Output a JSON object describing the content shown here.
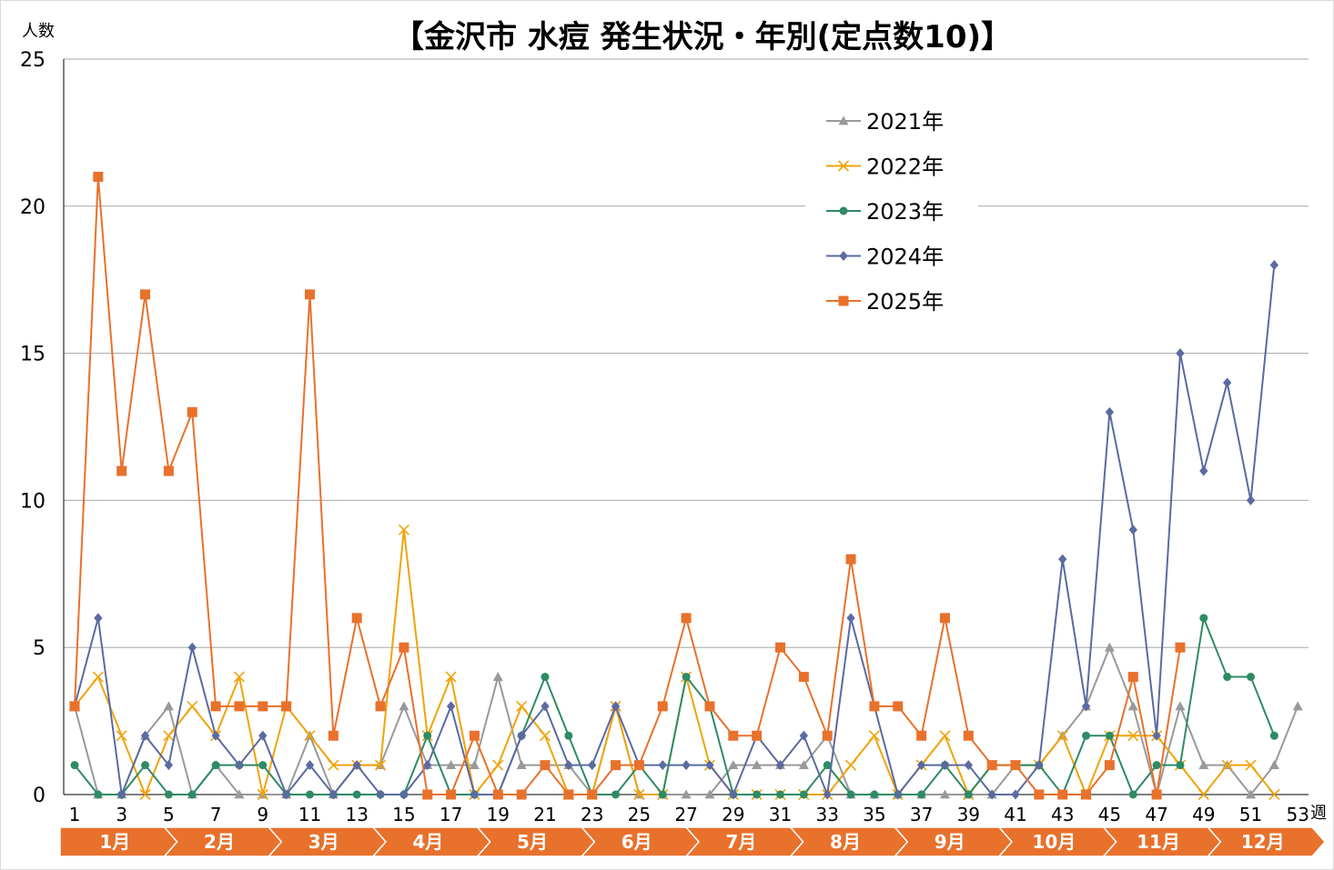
{
  "chart_data": {
    "type": "line",
    "title": "【金沢市 水痘 発生状況・年別(定点数10)】",
    "ylabel": "人数",
    "xlabel": "週",
    "ylim": [
      0,
      25
    ],
    "yticks": [
      "0",
      "5",
      "10",
      "15",
      "20",
      "25"
    ],
    "xlim": [
      1,
      53
    ],
    "xtick_labels": [
      "1",
      "3",
      "5",
      "7",
      "9",
      "11",
      "13",
      "15",
      "17",
      "19",
      "21",
      "23",
      "25",
      "27",
      "29",
      "31",
      "33",
      "35",
      "37",
      "39",
      "41",
      "43",
      "45",
      "47",
      "49",
      "51",
      "53"
    ],
    "months": [
      "1月",
      "2月",
      "3月",
      "4月",
      "5月",
      "6月",
      "7月",
      "8月",
      "9月",
      "10月",
      "11月",
      "12月"
    ],
    "grid": true,
    "legend_position": "upper-right-inside",
    "series": [
      {
        "name": "2021年",
        "color": "#999999",
        "marker": "triangle",
        "values": [
          3,
          0,
          0,
          2,
          3,
          0,
          1,
          0,
          0,
          0,
          2,
          0,
          1,
          1,
          3,
          1,
          1,
          1,
          4,
          1,
          1,
          1,
          0,
          3,
          0,
          0,
          0,
          0,
          1,
          1,
          1,
          1,
          2,
          0,
          0,
          0,
          0,
          0,
          0,
          0,
          1,
          1,
          2,
          3,
          5,
          3,
          0,
          3,
          1,
          1,
          0,
          1,
          3
        ]
      },
      {
        "name": "2022年",
        "color": "#f0a30a",
        "marker": "x",
        "values": [
          3,
          4,
          2,
          0,
          2,
          3,
          2,
          4,
          0,
          3,
          2,
          1,
          1,
          1,
          9,
          2,
          4,
          0,
          1,
          3,
          2,
          0,
          0,
          3,
          0,
          0,
          4,
          1,
          0,
          0,
          0,
          0,
          0,
          1,
          2,
          0,
          1,
          2,
          0,
          1,
          1,
          1,
          2,
          0,
          2,
          2,
          2,
          1,
          0,
          1,
          1,
          0
        ]
      },
      {
        "name": "2023年",
        "color": "#2e8b63",
        "marker": "circle",
        "values": [
          1,
          0,
          0,
          1,
          0,
          0,
          1,
          1,
          1,
          0,
          0,
          0,
          0,
          0,
          0,
          2,
          0,
          0,
          0,
          2,
          4,
          2,
          0,
          0,
          1,
          0,
          4,
          3,
          0,
          0,
          0,
          0,
          1,
          0,
          0,
          0,
          0,
          1,
          0,
          1,
          1,
          1,
          0,
          2,
          2,
          0,
          1,
          1,
          6,
          4,
          4,
          2
        ]
      },
      {
        "name": "2024年",
        "color": "#5b6aa0",
        "marker": "diamond",
        "values": [
          3,
          6,
          0,
          2,
          1,
          5,
          2,
          1,
          2,
          0,
          1,
          0,
          1,
          0,
          0,
          1,
          3,
          0,
          0,
          2,
          3,
          1,
          1,
          3,
          1,
          1,
          1,
          1,
          0,
          2,
          1,
          2,
          0,
          6,
          3,
          0,
          1,
          1,
          1,
          0,
          0,
          1,
          8,
          3,
          13,
          9,
          2,
          15,
          11,
          14,
          10,
          18
        ]
      },
      {
        "name": "2025年",
        "color": "#e8712c",
        "marker": "square",
        "values": [
          3,
          21,
          11,
          17,
          11,
          13,
          3,
          3,
          3,
          3,
          17,
          2,
          6,
          3,
          5,
          0,
          0,
          2,
          0,
          0,
          1,
          0,
          0,
          1,
          1,
          3,
          6,
          3,
          2,
          2,
          5,
          4,
          2,
          8,
          3,
          3,
          2,
          6,
          2,
          1,
          1,
          0,
          0,
          0,
          1,
          4,
          0,
          5
        ]
      }
    ]
  }
}
